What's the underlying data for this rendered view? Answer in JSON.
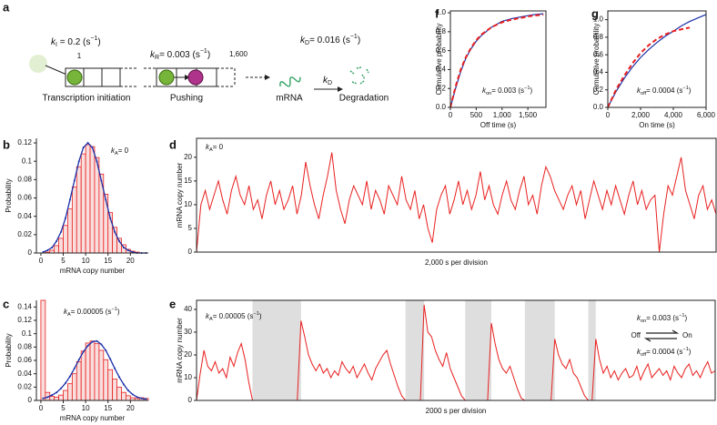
{
  "diagram": {
    "panel": "a",
    "k_initiation": {
      "sym": "k",
      "sub": "I",
      "text": " = 0.2 (s",
      "sup": "−1",
      "end": ")"
    },
    "site_first": "1",
    "site_last": "1,600",
    "initiation_label": "Transcription initiation",
    "k_pushing": {
      "sym": "k",
      "sub": "R",
      "text": "= 0.003 (s",
      "sup": "−1",
      "end": ")"
    },
    "pushing_label": "Pushing",
    "mrna_label": "mRNA",
    "k_degradation": {
      "sym": "k",
      "sub": "D",
      "text": "= 0.016 (s",
      "sup": "−1",
      "end": ")"
    },
    "arrow_label": {
      "sym": "k",
      "sub": "D"
    },
    "degradation_label": "Degradation"
  },
  "chart_data": [
    {
      "panel": "b",
      "type": "histogram",
      "ylabel": "Probability",
      "xlabel": "mRNA copy number",
      "annotation": {
        "sym": "k",
        "sub": "A",
        "text": "= 0"
      },
      "bins": [
        0,
        1,
        2,
        3,
        4,
        5,
        6,
        7,
        8,
        9,
        10,
        11,
        12,
        13,
        14,
        15,
        16,
        17,
        18,
        19,
        20,
        21,
        22,
        23,
        24
      ],
      "values": [
        0,
        0.001,
        0.003,
        0.008,
        0.016,
        0.03,
        0.048,
        0.072,
        0.094,
        0.108,
        0.118,
        0.116,
        0.104,
        0.086,
        0.064,
        0.044,
        0.028,
        0.016,
        0.009,
        0.004,
        0.002,
        0.001,
        0,
        0
      ],
      "color": "#e8201f",
      "fit_values": [
        0.001,
        0.003,
        0.006,
        0.013,
        0.023,
        0.038,
        0.058,
        0.079,
        0.1,
        0.115,
        0.12,
        0.115,
        0.1,
        0.079,
        0.058,
        0.038,
        0.023,
        0.013,
        0.006,
        0.003,
        0.001,
        0,
        0,
        0
      ],
      "fit_color": "#1b2fa8",
      "xlim": [
        -1,
        24
      ],
      "xticks": [
        0,
        5,
        10,
        15,
        20
      ],
      "ylim": [
        0,
        0.125
      ],
      "yticks": [
        0,
        0.02,
        0.04,
        0.06,
        0.08,
        0.1,
        0.12
      ]
    },
    {
      "panel": "c",
      "type": "histogram",
      "ylabel": "Probability",
      "xlabel": "mRNA copy number",
      "annotation": {
        "sym": "k",
        "sub": "A",
        "text": "= 0.00005 (s",
        "sup": "−1",
        "end": ")"
      },
      "bins": [
        0,
        1,
        2,
        3,
        4,
        5,
        6,
        7,
        8,
        9,
        10,
        11,
        12,
        13,
        14,
        15,
        16,
        17,
        18,
        19,
        20,
        21,
        22,
        23,
        24
      ],
      "values": [
        0.15,
        0.012,
        0.006,
        0.005,
        0.008,
        0.015,
        0.025,
        0.04,
        0.058,
        0.074,
        0.086,
        0.089,
        0.085,
        0.075,
        0.061,
        0.046,
        0.032,
        0.02,
        0.012,
        0.007,
        0.004,
        0.003,
        0.004,
        0.003
      ],
      "color": "#e8201f",
      "fit_values": [
        0.003,
        0.005,
        0.008,
        0.012,
        0.018,
        0.026,
        0.036,
        0.048,
        0.061,
        0.073,
        0.082,
        0.088,
        0.089,
        0.084,
        0.075,
        0.062,
        0.048,
        0.035,
        0.024,
        0.015,
        0.009,
        0.005,
        0.003,
        0.002
      ],
      "fit_color": "#1b2fa8",
      "xlim": [
        -1,
        24
      ],
      "xticks": [
        0,
        5,
        10,
        15,
        20
      ],
      "ylim": [
        0,
        0.15
      ],
      "yticks": [
        0,
        0.02,
        0.04,
        0.06,
        0.08,
        0.1,
        0.12,
        0.14
      ]
    },
    {
      "panel": "d",
      "type": "trace",
      "ylabel": "mRNA copy number",
      "xlabel": "2,000 s per division",
      "annotation": {
        "sym": "k",
        "sub": "A",
        "text": "= 0"
      },
      "color": "#e8201f",
      "values": [
        0,
        10,
        13,
        9,
        12,
        15,
        11,
        8,
        13,
        16,
        12,
        10,
        14,
        9,
        11,
        7,
        12,
        15,
        10,
        13,
        9,
        11,
        14,
        8,
        12,
        19,
        14,
        10,
        7,
        12,
        16,
        21,
        13,
        9,
        6,
        11,
        14,
        12,
        10,
        15,
        9,
        13,
        11,
        8,
        14,
        12,
        10,
        16,
        11,
        9,
        13,
        7,
        10,
        5,
        2,
        9,
        12,
        14,
        8,
        11,
        15,
        10,
        13,
        9,
        12,
        17,
        11,
        14,
        10,
        8,
        12,
        15,
        11,
        9,
        13,
        16,
        10,
        12,
        8,
        14,
        18,
        16,
        13,
        11,
        9,
        12,
        14,
        10,
        13,
        7,
        11,
        15,
        12,
        9,
        13,
        10,
        14,
        11,
        8,
        12,
        15,
        10,
        13,
        9,
        11,
        12,
        0,
        8,
        14,
        12,
        16,
        20,
        13,
        10,
        7,
        12,
        14,
        9,
        11,
        8
      ],
      "ylim": [
        0,
        24
      ],
      "yticks": [
        0,
        5,
        10,
        15,
        20
      ]
    },
    {
      "panel": "e",
      "type": "trace",
      "ylabel": "mRNA copy number",
      "xlabel": "2000 s per division",
      "annotation": {
        "sym": "k",
        "sub": "A",
        "text": "= 0.00005 (s",
        "sup": "−1",
        "end": ")"
      },
      "switch_on": {
        "sym": "k",
        "sub": "on",
        "text": "= 0.003 (s",
        "sup": "−1",
        "end": ")"
      },
      "switch_off": {
        "sym": "k",
        "sub": "off",
        "text": "= 0.0004 (s",
        "sup": "−1",
        "end": ")"
      },
      "off_label": "Off",
      "on_label": "On",
      "color": "#e8201f",
      "shade_color": "#dedede",
      "off_intervals": [
        [
          15,
          28
        ],
        [
          56,
          61
        ],
        [
          72,
          79
        ],
        [
          88,
          96
        ],
        [
          105,
          107
        ]
      ],
      "values": [
        0,
        12,
        22,
        15,
        13,
        17,
        12,
        14,
        10,
        19,
        15,
        21,
        25,
        18,
        8,
        0,
        0,
        0,
        0,
        0,
        0,
        0,
        0,
        0,
        0,
        0,
        0,
        0,
        35,
        28,
        20,
        16,
        13,
        16,
        12,
        14,
        10,
        13,
        11,
        17,
        14,
        12,
        15,
        10,
        13,
        16,
        12,
        9,
        14,
        17,
        20,
        22,
        16,
        11,
        6,
        2,
        0,
        0,
        0,
        0,
        0,
        42,
        30,
        28,
        22,
        18,
        15,
        21,
        14,
        10,
        6,
        2,
        0,
        0,
        0,
        0,
        0,
        0,
        0,
        34,
        25,
        18,
        14,
        12,
        15,
        10,
        5,
        1,
        0,
        0,
        0,
        0,
        0,
        0,
        0,
        0,
        27,
        20,
        16,
        14,
        18,
        12,
        10,
        6,
        2,
        0,
        0,
        27,
        18,
        12,
        15,
        10,
        13,
        9,
        12,
        14,
        10,
        11,
        15,
        9,
        13,
        16,
        10,
        12,
        14,
        11,
        13,
        9,
        15,
        12,
        10,
        14,
        16,
        11,
        13,
        10,
        14,
        17,
        12,
        13
      ],
      "ylim": [
        0,
        44
      ],
      "yticks": [
        0,
        10,
        20,
        30,
        40
      ]
    },
    {
      "panel": "f",
      "type": "cdf",
      "ylabel": "Cumulative probability",
      "xlabel": "Off time (s)",
      "annotation": {
        "sym": "k",
        "sub": "on",
        "text": "= 0.003 (s",
        "sup": "−1",
        "end": ")"
      },
      "x": [
        0,
        100,
        200,
        300,
        400,
        500,
        600,
        800,
        1000,
        1200,
        1400,
        1600,
        1800
      ],
      "series": [
        {
          "color": "#1b2fa8",
          "dashed": false,
          "values": [
            0,
            0.2,
            0.38,
            0.52,
            0.62,
            0.7,
            0.76,
            0.85,
            0.91,
            0.94,
            0.96,
            0.98,
            0.99
          ]
        },
        {
          "color": "#e8201f",
          "dashed": true,
          "values": [
            0,
            0.22,
            0.4,
            0.53,
            0.63,
            0.71,
            0.77,
            0.85,
            0.9,
            0.93,
            0.95,
            0.97,
            0.98
          ]
        }
      ],
      "xlim": [
        0,
        1850
      ],
      "xticks": [
        0,
        500,
        {
          "value": 1000,
          "label": "1,000"
        },
        {
          "value": 1500,
          "label": "1,500"
        }
      ],
      "ylim": [
        0,
        1.02
      ],
      "yticks": [
        {
          "value": 0,
          "label": "0.0"
        },
        0.2,
        0.4,
        0.6,
        0.8,
        {
          "value": 1,
          "label": "1.0"
        }
      ]
    },
    {
      "panel": "g",
      "type": "cdf",
      "ylabel": "Cumulative probability",
      "xlabel": "On time (s)",
      "annotation": {
        "sym": "k",
        "sub": "off",
        "text": "= 0.0004 (s",
        "sup": "−1",
        "end": ")"
      },
      "x": [
        0,
        500,
        1000,
        1500,
        2000,
        2500,
        3000,
        3500,
        4000,
        4500,
        5000,
        5500,
        6000
      ],
      "series": [
        {
          "color": "#1b2fa8",
          "dashed": false,
          "values": [
            0,
            0.18,
            0.33,
            0.46,
            0.57,
            0.66,
            0.74,
            0.81,
            0.87,
            0.93,
            0.98,
            1.02,
            1.06
          ]
        },
        {
          "color": "#e8201f",
          "dashed": true,
          "values": [
            0,
            0.2,
            0.36,
            0.5,
            0.62,
            0.71,
            0.78,
            0.83,
            0.87,
            0.89,
            0.91,
            null,
            null
          ]
        }
      ],
      "xlim": [
        0,
        6000
      ],
      "xticks": [
        0,
        {
          "value": 2000,
          "label": "2,000"
        },
        {
          "value": 4000,
          "label": "4,000"
        },
        {
          "value": 6000,
          "label": "6,000"
        }
      ],
      "ylim": [
        0,
        1.1
      ],
      "yticks": [
        {
          "value": 0,
          "label": "0.0"
        },
        0.2,
        0.4,
        0.6,
        0.8,
        {
          "value": 1,
          "label": "1.0"
        }
      ]
    }
  ]
}
